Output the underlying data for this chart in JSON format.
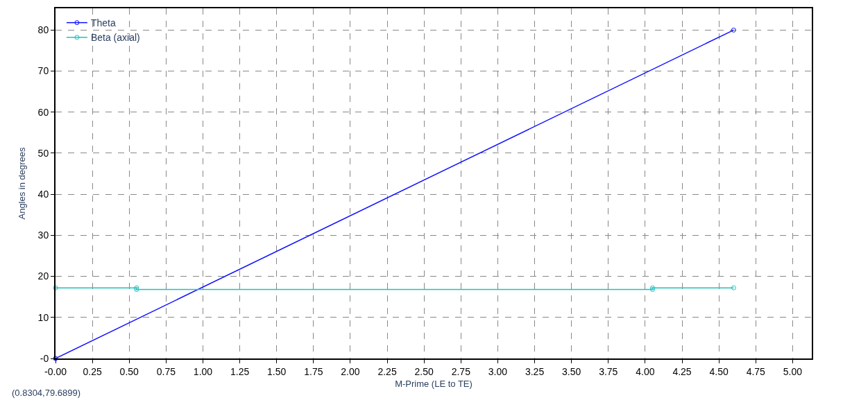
{
  "chart_data": {
    "type": "line",
    "xlabel": "M-Prime (LE to TE)",
    "ylabel": "Angles in degrees",
    "annotations": [
      "(0.8304,79.6899)"
    ],
    "series": [
      {
        "name": "Theta",
        "color": "#1010ff",
        "x": [
          0,
          4.6
        ],
        "values": [
          0,
          80
        ]
      },
      {
        "name": "Beta (axial)",
        "color": "#20c0c0",
        "x": [
          0,
          0.55,
          0.55,
          4.05,
          4.05,
          4.6
        ],
        "values": [
          17.2,
          17.2,
          16.8,
          16.8,
          17.2,
          17.2
        ]
      }
    ],
    "xlim": [
      0,
      5.13
    ],
    "ylim": [
      0,
      85.3
    ],
    "xticks": [
      {
        "value": 0,
        "label": "-0.00"
      },
      {
        "value": 0.25,
        "label": "0.25"
      },
      {
        "value": 0.5,
        "label": "0.50"
      },
      {
        "value": 0.75,
        "label": "0.75"
      },
      {
        "value": 1,
        "label": "1.00"
      },
      {
        "value": 1.25,
        "label": "1.25"
      },
      {
        "value": 1.5,
        "label": "1.50"
      },
      {
        "value": 1.75,
        "label": "1.75"
      },
      {
        "value": 2,
        "label": "2.00"
      },
      {
        "value": 2.25,
        "label": "2.25"
      },
      {
        "value": 2.5,
        "label": "2.50"
      },
      {
        "value": 2.75,
        "label": "2.75"
      },
      {
        "value": 3,
        "label": "3.00"
      },
      {
        "value": 3.25,
        "label": "3.25"
      },
      {
        "value": 3.5,
        "label": "3.50"
      },
      {
        "value": 3.75,
        "label": "3.75"
      },
      {
        "value": 4,
        "label": "4.00"
      },
      {
        "value": 4.25,
        "label": "4.25"
      },
      {
        "value": 4.5,
        "label": "4.50"
      },
      {
        "value": 4.75,
        "label": "4.75"
      },
      {
        "value": 5,
        "label": "5.00"
      }
    ],
    "yticks": [
      {
        "value": 0,
        "label": "-0"
      },
      10,
      20,
      30,
      40,
      50,
      60,
      70,
      80
    ],
    "grid": true,
    "legend": "top left",
    "marker": "circle",
    "line_style": "solid"
  }
}
